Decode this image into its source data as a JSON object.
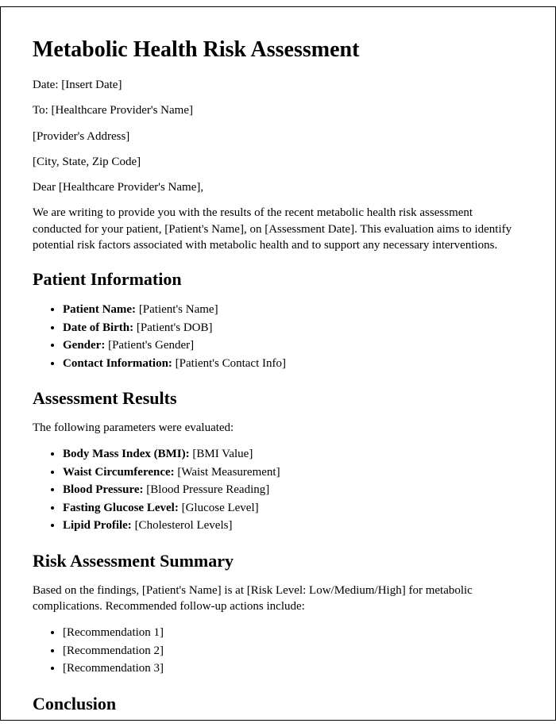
{
  "title": "Metabolic Health Risk Assessment",
  "header": {
    "date_line": "Date: [Insert Date]",
    "to_line": "To: [Healthcare Provider's Name]",
    "addr_line": "[Provider's Address]",
    "city_line": "[City, State, Zip Code]",
    "salutation": "Dear [Healthcare Provider's Name],"
  },
  "intro": "We are writing to provide you with the results of the recent metabolic health risk assessment conducted for your patient, [Patient's Name], on [Assessment Date]. This evaluation aims to identify potential risk factors associated with metabolic health and to support any necessary interventions.",
  "sections": {
    "patient_info": {
      "heading": "Patient Information",
      "items": [
        {
          "label": "Patient Name:",
          "value": " [Patient's Name]"
        },
        {
          "label": "Date of Birth:",
          "value": " [Patient's DOB]"
        },
        {
          "label": "Gender:",
          "value": " [Patient's Gender]"
        },
        {
          "label": "Contact Information:",
          "value": " [Patient's Contact Info]"
        }
      ]
    },
    "assessment_results": {
      "heading": "Assessment Results",
      "lead": "The following parameters were evaluated:",
      "items": [
        {
          "label": "Body Mass Index (BMI):",
          "value": " [BMI Value]"
        },
        {
          "label": "Waist Circumference:",
          "value": " [Waist Measurement]"
        },
        {
          "label": "Blood Pressure:",
          "value": " [Blood Pressure Reading]"
        },
        {
          "label": "Fasting Glucose Level:",
          "value": " [Glucose Level]"
        },
        {
          "label": "Lipid Profile:",
          "value": " [Cholesterol Levels]"
        }
      ]
    },
    "risk_summary": {
      "heading": "Risk Assessment Summary",
      "lead": "Based on the findings, [Patient's Name] is at [Risk Level: Low/Medium/High] for metabolic complications. Recommended follow-up actions include:",
      "items": [
        {
          "value": "[Recommendation 1]"
        },
        {
          "value": "[Recommendation 2]"
        },
        {
          "value": "[Recommendation 3]"
        }
      ]
    },
    "conclusion": {
      "heading": "Conclusion"
    }
  }
}
